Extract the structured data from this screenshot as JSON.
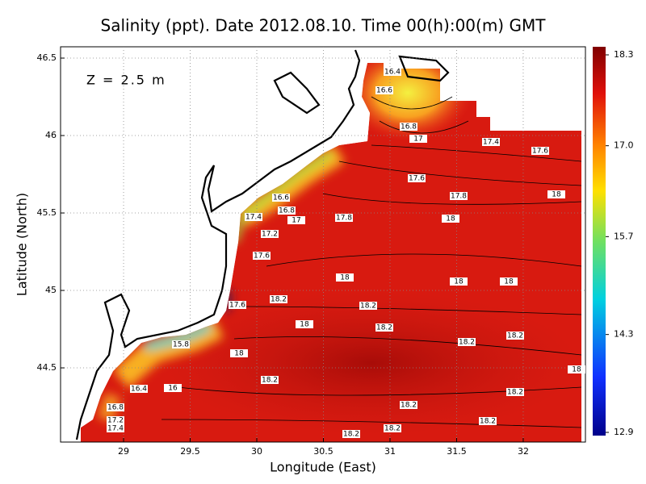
{
  "chart_data": {
    "type": "contour_map",
    "title": "Salinity (ppt). Date 2012.08.10. Time 00(h):00(m) GMT",
    "annotation": "Z = 2.5 m",
    "x_label": "Longitude (East)",
    "y_label": "Latitude (North)",
    "xlim": [
      28.527,
      32.467
    ],
    "ylim": [
      44.021,
      46.573
    ],
    "xticks": [
      29,
      29.5,
      30,
      30.5,
      31,
      31.5,
      32
    ],
    "yticks": [
      44.5,
      45,
      45.5,
      46,
      46.5
    ],
    "grid": true,
    "colorbar_lim": [
      12.9,
      18.3
    ],
    "colorbar_ticks": [
      12.9,
      14.3,
      15.7,
      {
        "value": 17,
        "label": "17.0"
      },
      18.3
    ],
    "contour_labels": [
      "16.4",
      "16.6",
      "16.8",
      "17",
      "17.4",
      "17.6",
      "17.6",
      "17.8",
      "18",
      "16.6",
      "16.8",
      "17.4",
      "17",
      "17.8",
      "18",
      "17.2",
      "17.6",
      "18",
      "18",
      "18",
      "18.2",
      "17.6",
      "18.2",
      "18",
      "18.2",
      "18.2",
      "18.2",
      "15.8",
      "18",
      "18",
      "18.2",
      "16.4",
      "16",
      "18.2",
      "18.2",
      "16.8",
      "17.2",
      "17.4",
      "18.2",
      "18.2",
      "18.2"
    ]
  }
}
